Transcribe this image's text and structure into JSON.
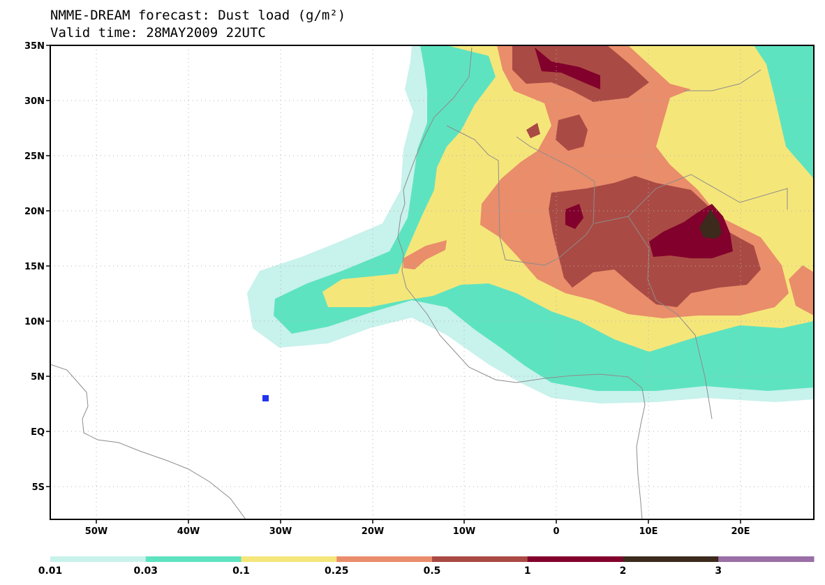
{
  "title": {
    "line1": "NMME-DREAM forecast: Dust load (g/m²)",
    "line2": "Valid time: 28MAY2009 22UTC"
  },
  "axes": {
    "lat_labels": [
      "35N",
      "30N",
      "25N",
      "20N",
      "15N",
      "10N",
      "5N",
      "EQ",
      "5S"
    ],
    "lon_labels": [
      "50W",
      "40W",
      "30W",
      "20W",
      "10W",
      "0",
      "10E",
      "20E"
    ]
  },
  "legend": {
    "labels": [
      "0.01",
      "0.03",
      "0.1",
      "0.25",
      "0.5",
      "1",
      "2",
      "3"
    ],
    "colors": [
      "#c8f2ec",
      "#5ee3c0",
      "#f5e67a",
      "#e98d6b",
      "#aa4a44",
      "#82002c",
      "#3c2a1c",
      "#9a6ea6"
    ]
  },
  "marker": {
    "color": "#2233ee"
  }
}
